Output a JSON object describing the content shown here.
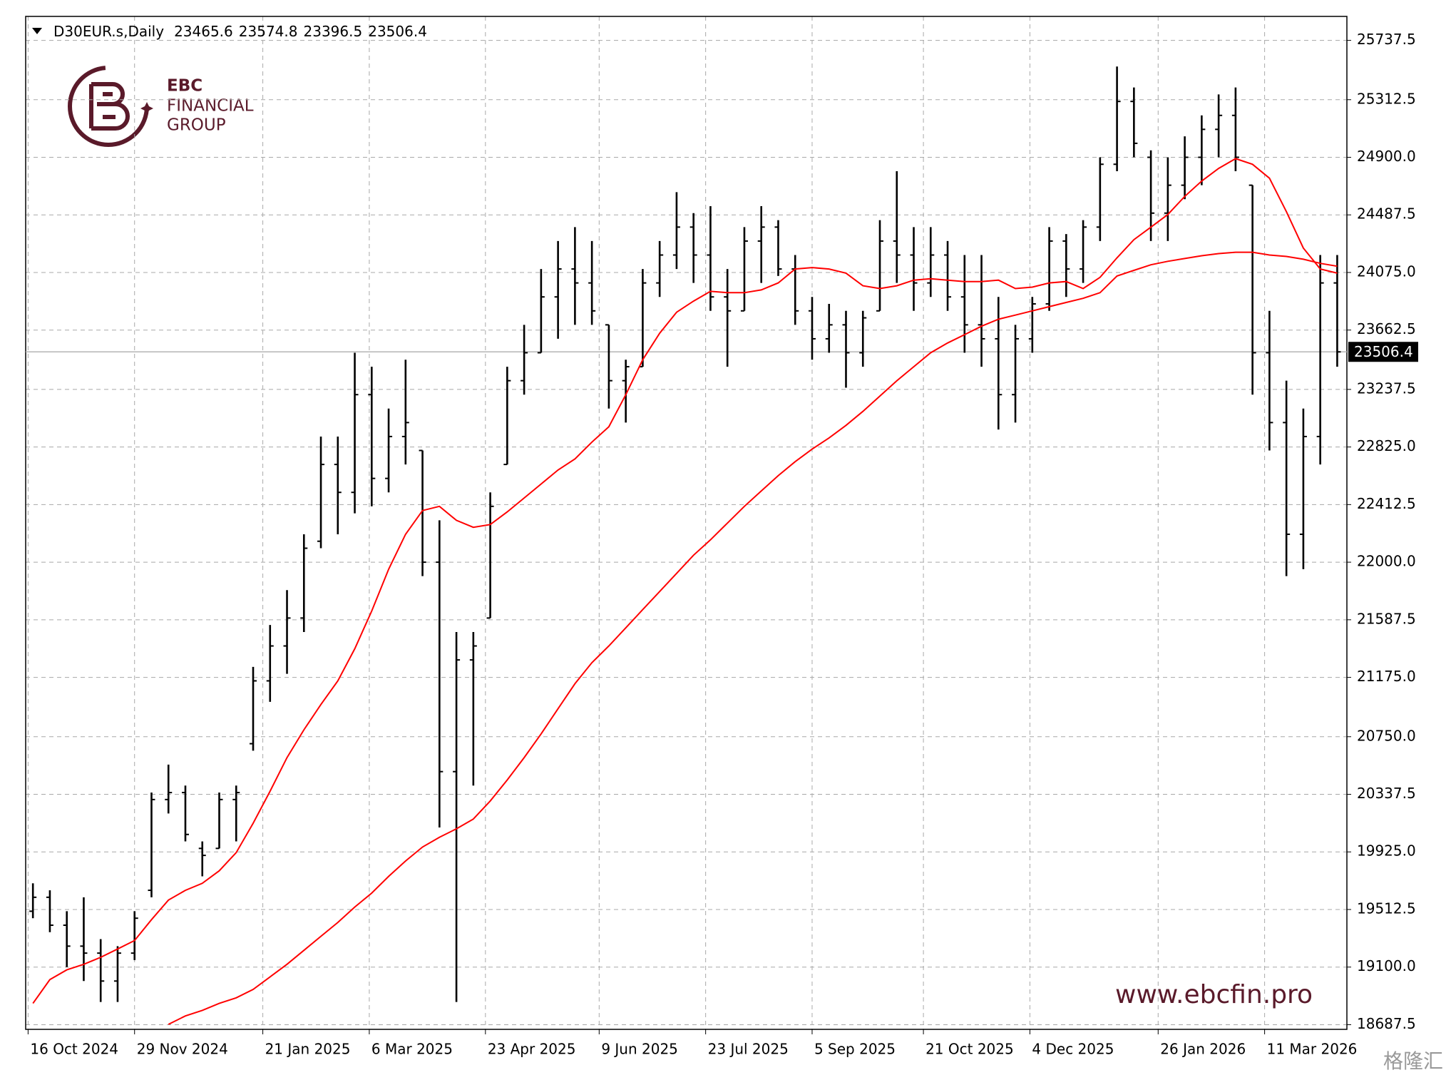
{
  "chart_data": {
    "type": "ohlc",
    "title": "D30EUR.s,Daily",
    "header_values": [
      23465.6,
      23574.8,
      23396.5,
      23506.4
    ],
    "x": [
      "2024-10-18",
      "2024-10-25",
      "2024-11-01",
      "2024-11-08",
      "2024-11-15",
      "2024-11-22",
      "2024-11-29",
      "2024-12-06",
      "2024-12-13",
      "2024-12-20",
      "2024-12-27",
      "2025-01-03",
      "2025-01-10",
      "2025-01-17",
      "2025-01-24",
      "2025-01-31",
      "2025-02-07",
      "2025-02-14",
      "2025-02-21",
      "2025-02-28",
      "2025-03-07",
      "2025-03-14",
      "2025-03-21",
      "2025-03-28",
      "2025-04-04",
      "2025-04-11",
      "2025-04-18",
      "2025-04-25",
      "2025-05-02",
      "2025-05-09",
      "2025-05-16",
      "2025-05-23",
      "2025-05-30",
      "2025-06-06",
      "2025-06-13",
      "2025-06-20",
      "2025-06-27",
      "2025-07-04",
      "2025-07-11",
      "2025-07-18",
      "2025-07-25",
      "2025-08-01",
      "2025-08-08",
      "2025-08-15",
      "2025-08-22",
      "2025-08-29",
      "2025-09-05",
      "2025-09-12",
      "2025-09-19",
      "2025-09-26",
      "2025-10-03",
      "2025-10-10",
      "2025-10-17",
      "2025-10-24",
      "2025-10-31",
      "2025-11-07",
      "2025-11-14",
      "2025-11-21",
      "2025-11-28",
      "2025-12-05",
      "2025-12-12",
      "2025-12-19",
      "2025-12-26",
      "2026-01-02",
      "2026-01-09",
      "2026-01-16",
      "2026-01-23",
      "2026-01-30",
      "2026-02-06",
      "2026-02-13",
      "2026-02-20",
      "2026-02-27",
      "2026-03-06",
      "2026-03-13",
      "2026-03-20",
      "2026-03-27",
      "2026-04-03",
      "2026-04-10"
    ],
    "open": [
      19500,
      19600,
      19400,
      19250,
      19200,
      19000,
      19200,
      19650,
      20300,
      20350,
      19950,
      19950,
      20300,
      20700,
      21150,
      21400,
      21600,
      22150,
      22700,
      22500,
      23200,
      22600,
      22900,
      22800,
      22000,
      20500,
      21300,
      21600,
      22700,
      23300,
      23500,
      23900,
      24100,
      24000,
      23700,
      23300,
      23400,
      24000,
      24200,
      24400,
      24200,
      23900,
      23800,
      24300,
      24400,
      24100,
      23800,
      23600,
      23700,
      23500,
      23800,
      24300,
      24200,
      24000,
      24200,
      23900,
      23700,
      23600,
      23200,
      23600,
      23850,
      24300,
      24100,
      24400,
      24850,
      25300,
      24900,
      24500,
      24700,
      24900,
      25100,
      25200,
      24700,
      23500,
      23000,
      22200,
      22900,
      24000
    ],
    "high": [
      19700,
      19650,
      19500,
      19600,
      19300,
      19250,
      19500,
      20350,
      20550,
      20400,
      20000,
      20350,
      20400,
      21250,
      21550,
      21800,
      22200,
      22900,
      22900,
      23500,
      23400,
      23100,
      23450,
      22800,
      22300,
      21500,
      21500,
      22500,
      23400,
      23700,
      24100,
      24300,
      24400,
      24300,
      23700,
      23450,
      24100,
      24300,
      24650,
      24500,
      24550,
      24100,
      24400,
      24550,
      24450,
      24200,
      23900,
      23850,
      23800,
      23800,
      24450,
      24800,
      24400,
      24400,
      24300,
      24200,
      24200,
      23900,
      23700,
      23900,
      24400,
      24350,
      24450,
      24900,
      25550,
      25400,
      24950,
      24900,
      25050,
      25200,
      25350,
      25400,
      24700,
      23800,
      23300,
      23100,
      24200,
      24200
    ],
    "low": [
      19450,
      19350,
      19100,
      19000,
      18850,
      18850,
      19150,
      19600,
      20200,
      20000,
      19750,
      19950,
      20000,
      20650,
      21000,
      21200,
      21500,
      22100,
      22200,
      22350,
      22400,
      22500,
      22700,
      21900,
      20100,
      18850,
      20400,
      21600,
      22700,
      23200,
      23500,
      23600,
      23700,
      23700,
      23100,
      23000,
      23400,
      23900,
      24100,
      24000,
      23800,
      23400,
      23800,
      24000,
      24050,
      23700,
      23450,
      23500,
      23250,
      23400,
      23800,
      24000,
      23800,
      23900,
      23800,
      23500,
      23400,
      22950,
      23000,
      23500,
      23800,
      23900,
      24000,
      24300,
      24800,
      24900,
      24300,
      24300,
      24600,
      24700,
      24900,
      24800,
      23200,
      22800,
      21900,
      21950,
      22700,
      23400
    ],
    "close": [
      19600,
      19400,
      19250,
      19200,
      19000,
      19200,
      19450,
      20300,
      20350,
      20050,
      19900,
      20300,
      20350,
      21150,
      21400,
      21600,
      22100,
      22700,
      22500,
      23200,
      22600,
      22900,
      23000,
      22000,
      20500,
      21300,
      21400,
      22400,
      23300,
      23500,
      23900,
      24100,
      24000,
      23800,
      23300,
      23400,
      24000,
      24200,
      24400,
      24200,
      23900,
      23800,
      24300,
      24400,
      24100,
      23800,
      23600,
      23700,
      23500,
      23750,
      24300,
      24200,
      24000,
      24200,
      23900,
      23700,
      23600,
      23200,
      23600,
      23850,
      24300,
      24100,
      24400,
      24850,
      25300,
      25000,
      24500,
      24700,
      24900,
      25100,
      25200,
      24900,
      23500,
      23000,
      22200,
      22900,
      24000,
      23506.4
    ],
    "color": "#000000",
    "lines": [
      {
        "color": "#ff0000",
        "values": [
          18840,
          19010,
          19080,
          19120,
          19170,
          19230,
          19290,
          19440,
          19580,
          19650,
          19700,
          19790,
          19920,
          20130,
          20360,
          20600,
          20800,
          20980,
          21150,
          21380,
          21650,
          21950,
          22200,
          22370,
          22400,
          22300,
          22250,
          22270,
          22360,
          22460,
          22560,
          22660,
          22740,
          22860,
          22970,
          23200,
          23450,
          23640,
          23790,
          23870,
          23940,
          23930,
          23930,
          23950,
          24000,
          24100,
          24110,
          24100,
          24070,
          23980,
          23960,
          23980,
          24020,
          24030,
          24020,
          24010,
          24010,
          24020,
          23960,
          23970,
          24000,
          24010,
          23960,
          24040,
          24180,
          24310,
          24400,
          24490,
          24620,
          24730,
          24820,
          24890,
          24850,
          24750,
          24510,
          24250,
          24100,
          24070
        ]
      },
      {
        "color": "#ff0000",
        "values": [
          null,
          null,
          null,
          null,
          null,
          null,
          null,
          null,
          18690,
          18750,
          18790,
          18840,
          18880,
          18940,
          19030,
          19120,
          19220,
          19320,
          19420,
          19530,
          19630,
          19750,
          19860,
          19960,
          20030,
          20090,
          20160,
          20290,
          20440,
          20600,
          20770,
          20950,
          21130,
          21280,
          21400,
          21530,
          21660,
          21790,
          21920,
          22050,
          22160,
          22280,
          22400,
          22510,
          22620,
          22720,
          22810,
          22890,
          22980,
          23080,
          23190,
          23300,
          23400,
          23500,
          23570,
          23630,
          23690,
          23740,
          23770,
          23800,
          23830,
          23860,
          23890,
          23930,
          24050,
          24090,
          24130,
          24155,
          24175,
          24195,
          24210,
          24220,
          24220,
          24200,
          24190,
          24170,
          24140,
          24120
        ]
      }
    ],
    "ylim": [
      18654,
      25909
    ],
    "yticks": [
      18687.5,
      {
        "value": 19100,
        "label": "19100.0"
      },
      19512.5,
      {
        "value": 19925,
        "label": "19925.0"
      },
      20337.5,
      {
        "value": 20750,
        "label": "20750.0"
      },
      {
        "value": 21175,
        "label": "21175.0"
      },
      21587.5,
      {
        "value": 22000,
        "label": "22000.0"
      },
      22412.5,
      {
        "value": 22825,
        "label": "22825.0"
      },
      23237.5,
      23662.5,
      {
        "value": 24075,
        "label": "24075.0"
      },
      24487.5,
      {
        "value": 24900,
        "label": "24900.0"
      },
      25312.5,
      25737.5
    ],
    "xlim": [
      "2024-10-15",
      "2026-04-14"
    ],
    "xticks": [
      {
        "value": "2024-10-16",
        "label": "16 Oct 2024"
      },
      {
        "value": "2024-11-29",
        "label": "29 Nov 2024"
      },
      {
        "value": "2025-01-21",
        "label": "21 Jan 2025"
      },
      {
        "value": "2025-03-06",
        "label": "6 Mar 2025"
      },
      {
        "value": "2025-04-23",
        "label": "23 Apr 2025"
      },
      {
        "value": "2025-06-09",
        "label": "9 Jun 2025"
      },
      {
        "value": "2025-07-23",
        "label": "23 Jul 2025"
      },
      {
        "value": "2025-09-05",
        "label": "5 Sep 2025"
      },
      {
        "value": "2025-10-21",
        "label": "21 Oct 2025"
      },
      {
        "value": "2025-12-04",
        "label": "4 Dec 2025"
      },
      {
        "value": "2026-01-26",
        "label": "26 Jan 2026"
      },
      {
        "value": "2026-03-11",
        "label": "11 Mar 2026"
      }
    ],
    "grid": true
  },
  "logo": {
    "line1": "EBC",
    "line2": "FINANCIAL",
    "line3": "GROUP"
  },
  "watermark": "www.ebcfin.pro",
  "source_mark": "格隆汇"
}
